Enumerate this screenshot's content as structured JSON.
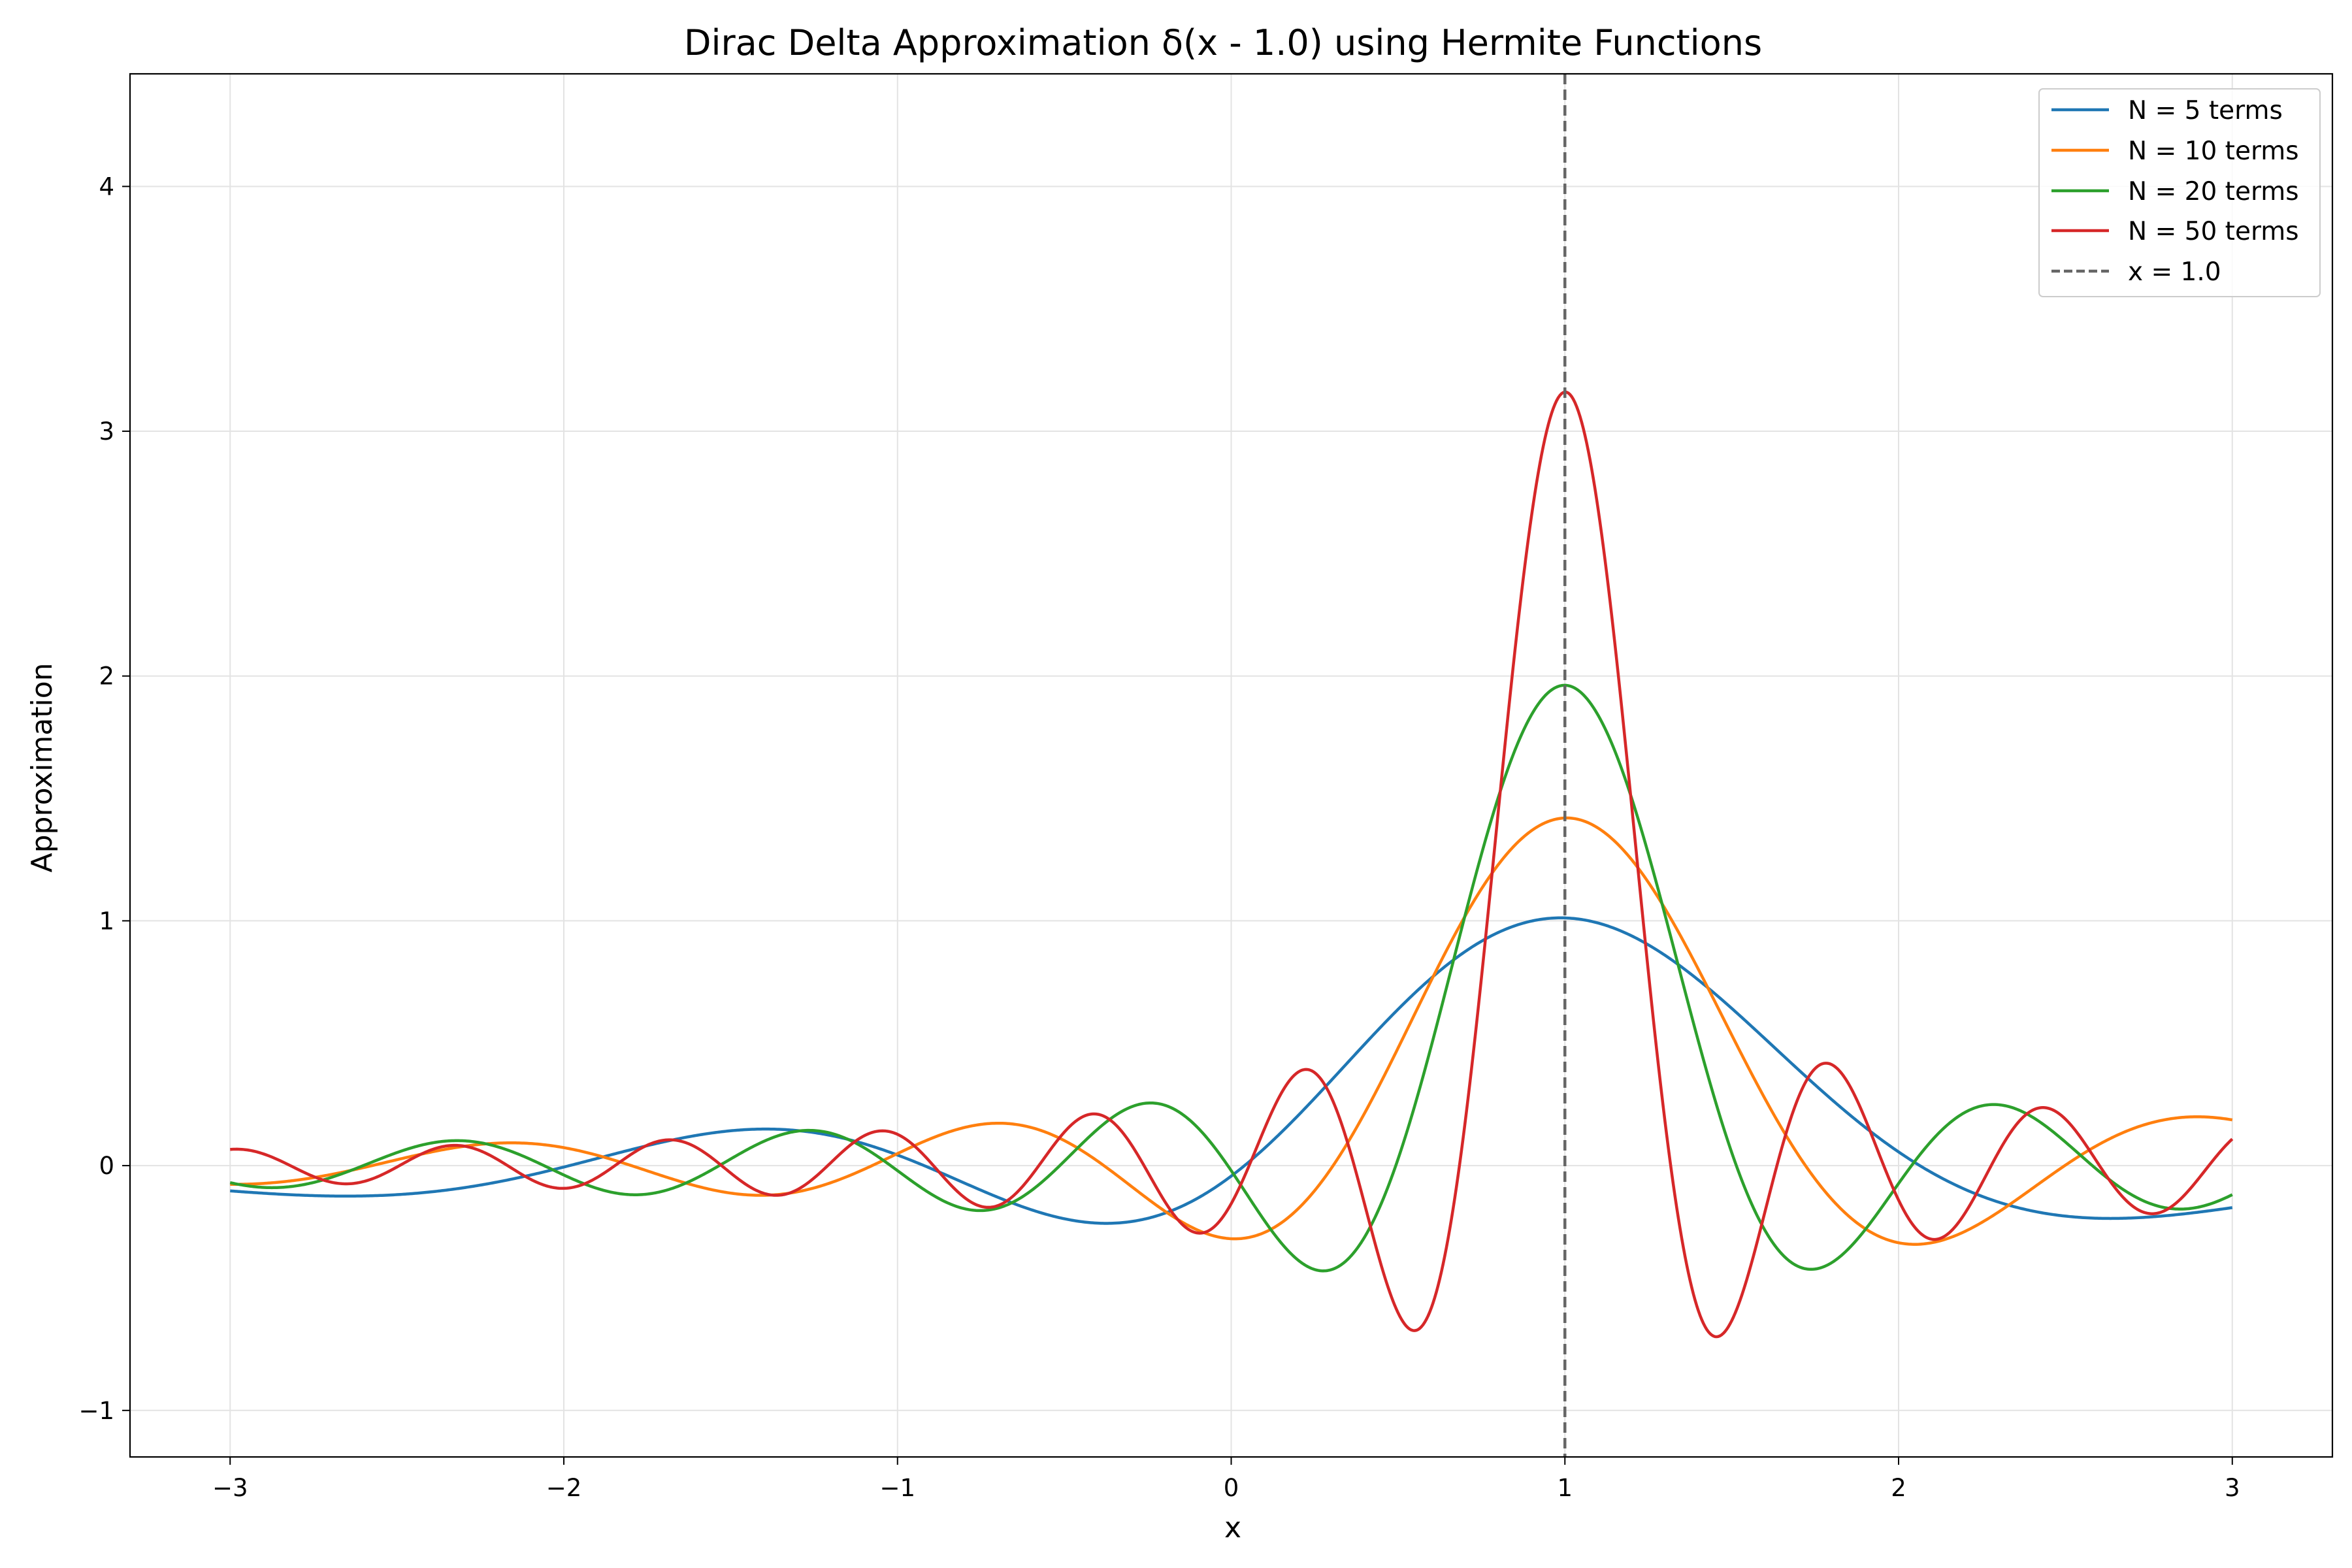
{
  "chart_data": {
    "type": "line",
    "title": "Dirac Delta Approximation δ(x - 1.0) using Hermite Functions",
    "xlabel": "x",
    "ylabel": "Approximation",
    "xlim": [
      -3.3,
      3.3
    ],
    "ylim": [
      -1.19,
      4.46
    ],
    "x_ticks": [
      -3,
      -2,
      -1,
      0,
      1,
      2,
      3
    ],
    "x_tick_labels": [
      "−3",
      "−2",
      "−1",
      "0",
      "1",
      "2",
      "3"
    ],
    "y_ticks": [
      -1,
      0,
      1,
      2,
      3,
      4
    ],
    "y_tick_labels": [
      "−1",
      "0",
      "1",
      "2",
      "3",
      "4"
    ],
    "grid": true,
    "legend_position": "top-right",
    "x_range": [
      -3,
      3
    ],
    "center": 1.0,
    "series": [
      {
        "name": "N = 5 terms",
        "terms": 5,
        "color": "#1f77b4"
      },
      {
        "name": "N = 10 terms",
        "terms": 10,
        "color": "#ff7f0e"
      },
      {
        "name": "N = 20 terms",
        "terms": 20,
        "color": "#2ca02c"
      },
      {
        "name": "N = 50 terms",
        "terms": 50,
        "color": "#d62728"
      }
    ],
    "vline": {
      "name": "x = 1.0",
      "x": 1.0,
      "color": "#666666",
      "style": "dashed"
    }
  }
}
